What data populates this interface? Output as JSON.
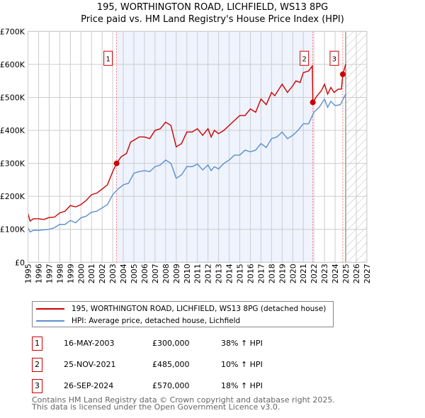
{
  "chart_data": {
    "type": "line",
    "title": "195, WORTHINGTON ROAD, LICHFIELD, WS13 8PG",
    "subtitle": "Price paid vs. HM Land Registry's House Price Index (HPI)",
    "xlim": [
      1995,
      2027
    ],
    "ylim": [
      0,
      700000
    ],
    "x_ticks": [
      "1995",
      "1996",
      "1997",
      "1998",
      "1999",
      "2000",
      "2001",
      "2002",
      "2003",
      "2004",
      "2005",
      "2006",
      "2007",
      "2008",
      "2009",
      "2010",
      "2011",
      "2012",
      "2013",
      "2014",
      "2015",
      "2016",
      "2017",
      "2018",
      "2019",
      "2020",
      "2021",
      "2022",
      "2023",
      "2024",
      "2025",
      "2026",
      "2027"
    ],
    "y_ticks": [
      {
        "v": 0,
        "label": "£0"
      },
      {
        "v": 100000,
        "label": "£100K"
      },
      {
        "v": 200000,
        "label": "£200K"
      },
      {
        "v": 300000,
        "label": "£300K"
      },
      {
        "v": 400000,
        "label": "£400K"
      },
      {
        "v": 500000,
        "label": "£500K"
      },
      {
        "v": 600000,
        "label": "£600K"
      },
      {
        "v": 700000,
        "label": "£700K"
      }
    ],
    "series": [
      {
        "name": "195, WORTHINGTON ROAD, LICHFIELD, WS13 8PG (detached house)",
        "color": "#cc0000",
        "points": [
          [
            1995,
            148
          ],
          [
            1995.2,
            125
          ],
          [
            1995.5,
            132
          ],
          [
            1996,
            132
          ],
          [
            1996.5,
            130
          ],
          [
            1997,
            136
          ],
          [
            1997.5,
            137
          ],
          [
            1998,
            150
          ],
          [
            1998.5,
            155
          ],
          [
            1999,
            172
          ],
          [
            1999.5,
            168
          ],
          [
            2000,
            175
          ],
          [
            2000.5,
            188
          ],
          [
            2001,
            205
          ],
          [
            2001.5,
            210
          ],
          [
            2002,
            222
          ],
          [
            2002.5,
            235
          ],
          [
            2003,
            275
          ],
          [
            2003.37,
            300
          ],
          [
            2003.8,
            320
          ],
          [
            2004.3,
            330
          ],
          [
            2004.7,
            365
          ],
          [
            2005,
            370
          ],
          [
            2005.5,
            380
          ],
          [
            2006,
            380
          ],
          [
            2006.5,
            375
          ],
          [
            2007,
            400
          ],
          [
            2007.5,
            405
          ],
          [
            2008,
            425
          ],
          [
            2008.5,
            415
          ],
          [
            2009,
            350
          ],
          [
            2009.5,
            360
          ],
          [
            2010,
            395
          ],
          [
            2010.5,
            395
          ],
          [
            2011,
            405
          ],
          [
            2011.5,
            385
          ],
          [
            2012,
            405
          ],
          [
            2012.3,
            380
          ],
          [
            2012.6,
            400
          ],
          [
            2013,
            390
          ],
          [
            2013.5,
            400
          ],
          [
            2014,
            415
          ],
          [
            2014.5,
            430
          ],
          [
            2015,
            445
          ],
          [
            2015.5,
            445
          ],
          [
            2016,
            465
          ],
          [
            2016.5,
            455
          ],
          [
            2017,
            495
          ],
          [
            2017.5,
            478
          ],
          [
            2018,
            515
          ],
          [
            2018.3,
            505
          ],
          [
            2018.7,
            525
          ],
          [
            2019,
            540
          ],
          [
            2019.5,
            515
          ],
          [
            2020,
            535
          ],
          [
            2020.3,
            550
          ],
          [
            2020.7,
            545
          ],
          [
            2021,
            575
          ],
          [
            2021.5,
            580
          ],
          [
            2021.85,
            595
          ],
          [
            2021.9,
            485
          ],
          [
            2022.3,
            505
          ],
          [
            2022.7,
            520
          ],
          [
            2023,
            540
          ],
          [
            2023.3,
            510
          ],
          [
            2023.6,
            530
          ],
          [
            2023.9,
            515
          ],
          [
            2024.3,
            525
          ],
          [
            2024.6,
            525
          ],
          [
            2024.73,
            570
          ],
          [
            2025,
            600
          ]
        ]
      },
      {
        "name": "HPI: Average price, detached house, Lichfield",
        "color": "#5b8fd0",
        "points": [
          [
            1995,
            105
          ],
          [
            1995.2,
            92
          ],
          [
            1995.5,
            97
          ],
          [
            1996,
            97
          ],
          [
            1997,
            100
          ],
          [
            1997.5,
            105
          ],
          [
            1998,
            115
          ],
          [
            1998.5,
            115
          ],
          [
            1999,
            127
          ],
          [
            1999.5,
            120
          ],
          [
            2000,
            135
          ],
          [
            2000.5,
            140
          ],
          [
            2001,
            152
          ],
          [
            2001.5,
            155
          ],
          [
            2002,
            165
          ],
          [
            2002.5,
            175
          ],
          [
            2003,
            205
          ],
          [
            2003.5,
            222
          ],
          [
            2004,
            235
          ],
          [
            2004.5,
            240
          ],
          [
            2005,
            270
          ],
          [
            2005.5,
            275
          ],
          [
            2006,
            278
          ],
          [
            2006.5,
            275
          ],
          [
            2007,
            290
          ],
          [
            2007.5,
            295
          ],
          [
            2008,
            310
          ],
          [
            2008.5,
            300
          ],
          [
            2009,
            255
          ],
          [
            2009.5,
            265
          ],
          [
            2010,
            290
          ],
          [
            2010.5,
            290
          ],
          [
            2011,
            298
          ],
          [
            2011.5,
            280
          ],
          [
            2012,
            295
          ],
          [
            2012.3,
            278
          ],
          [
            2012.6,
            290
          ],
          [
            2013,
            283
          ],
          [
            2013.5,
            300
          ],
          [
            2014,
            310
          ],
          [
            2014.5,
            325
          ],
          [
            2015,
            325
          ],
          [
            2015.5,
            340
          ],
          [
            2016,
            335
          ],
          [
            2016.5,
            340
          ],
          [
            2017,
            360
          ],
          [
            2017.5,
            348
          ],
          [
            2018,
            375
          ],
          [
            2018.5,
            380
          ],
          [
            2019,
            395
          ],
          [
            2019.5,
            375
          ],
          [
            2020,
            385
          ],
          [
            2020.5,
            400
          ],
          [
            2021,
            420
          ],
          [
            2021.5,
            420
          ],
          [
            2022,
            455
          ],
          [
            2022.5,
            470
          ],
          [
            2023,
            495
          ],
          [
            2023.3,
            470
          ],
          [
            2023.6,
            488
          ],
          [
            2024,
            475
          ],
          [
            2024.5,
            478
          ],
          [
            2025,
            510
          ]
        ]
      }
    ],
    "sales": [
      {
        "id": "1",
        "x": 2003.37,
        "y": 300
      },
      {
        "id": "2",
        "x": 2021.9,
        "y": 485
      },
      {
        "id": "3",
        "x": 2024.73,
        "y": 570
      }
    ],
    "shaded_range": [
      2003.37,
      2021.9
    ],
    "forecast_from": 2025
  },
  "table": [
    {
      "id": "1",
      "date": "16-MAY-2003",
      "price": "£300,000",
      "hpi": "38% ↑ HPI"
    },
    {
      "id": "2",
      "date": "25-NOV-2021",
      "price": "£485,000",
      "hpi": "10% ↑ HPI"
    },
    {
      "id": "3",
      "date": "26-SEP-2024",
      "price": "£570,000",
      "hpi": "18% ↑ HPI"
    }
  ],
  "footer": [
    "Contains HM Land Registry data © Crown copyright and database right 2025.",
    "This data is licensed under the Open Government Licence v3.0."
  ]
}
